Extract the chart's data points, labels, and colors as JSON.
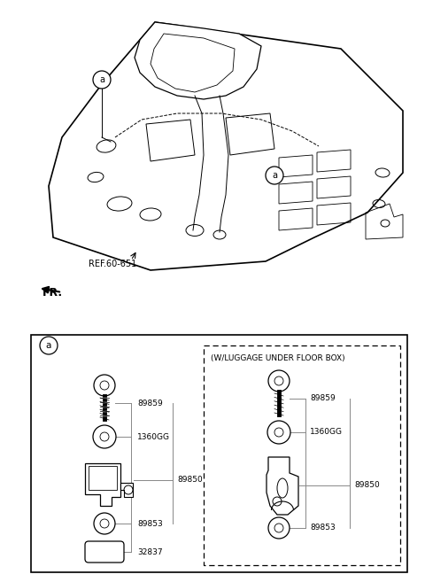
{
  "bg_color": "#ffffff",
  "line_color": "#000000",
  "gray_color": "#888888",
  "fig_width": 4.8,
  "fig_height": 6.57,
  "dpi": 100,
  "ref_label": "REF.60-651",
  "fr_label": "FR.",
  "box_label": "(W/LUGGAGE UNDER FLOOR BOX)",
  "label_a": "a"
}
